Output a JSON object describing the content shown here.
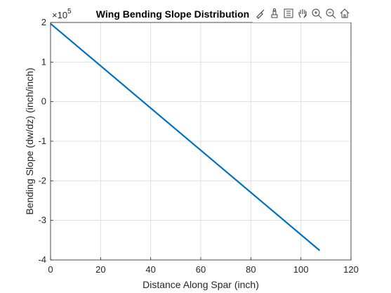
{
  "chart_data": {
    "type": "line",
    "title": "Wing Bending Slope Distribution",
    "xlabel": "Distance Along Spar (inch)",
    "ylabel": "Bending Slope (dw/dz) (inch/inch)",
    "xlim": [
      0,
      120
    ],
    "ylim": [
      -4,
      2
    ],
    "y_exponent_label": "×10",
    "y_exponent_power": "5",
    "xticks": [
      "0",
      "20",
      "40",
      "60",
      "80",
      "100",
      "120"
    ],
    "yticks": [
      "-4",
      "-3",
      "-2",
      "-1",
      "0",
      "1",
      "2"
    ],
    "grid": true,
    "series": [
      {
        "color": "#0072BD",
        "x": [
          0,
          107.5
        ],
        "y": [
          1.97,
          -3.76
        ]
      }
    ]
  },
  "toolbar": {
    "icons": [
      "brush-icon",
      "data-tip-icon",
      "legend-icon",
      "pan-icon",
      "zoom-in-icon",
      "zoom-out-icon",
      "home-icon"
    ]
  }
}
